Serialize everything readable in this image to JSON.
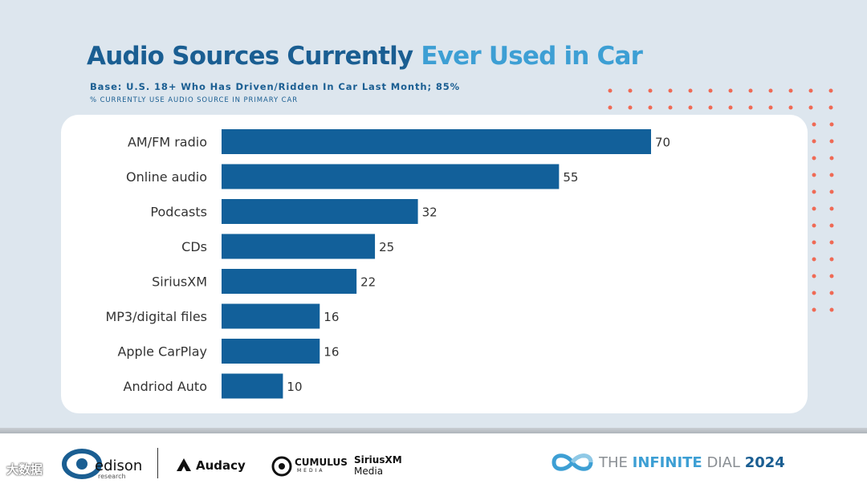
{
  "title_part1": "Audio Sources Currently",
  "title_part2": "Ever Used in Car",
  "subtitle": "Base: U.S. 18+ Who Has Driven/Ridden In Car Last Month; 85%",
  "subnote": "% CURRENTLY USE AUDIO SOURCE IN PRIMARY CAR",
  "colors": {
    "bar": "#12609a",
    "title_dark": "#1a5e92",
    "title_light": "#3d9fd4",
    "dots": "#ef6a55"
  },
  "chart_data": {
    "type": "bar",
    "orientation": "horizontal",
    "categories": [
      "AM/FM radio",
      "Online audio",
      "Podcasts",
      "CDs",
      "SiriusXM",
      "MP3/digital files",
      "Apple CarPlay",
      "Andriod Auto"
    ],
    "values": [
      70,
      55,
      32,
      25,
      22,
      16,
      16,
      10
    ],
    "xlim": [
      0,
      70
    ],
    "grid": false,
    "legend": "none"
  },
  "footer": {
    "edison": "edison",
    "edison_sub": "research",
    "audacy": "Audacy",
    "cumulus": "CUMULUS",
    "cumulus_sub": "MEDIA",
    "siriusxm": "SiriusXM",
    "siriusxm_sub": "Media",
    "dial_prefix": "THE ",
    "dial_infinite": "INFINITE",
    "dial_suffix": " DIAL",
    "dial_year": "2024",
    "watermark": "大数据"
  }
}
